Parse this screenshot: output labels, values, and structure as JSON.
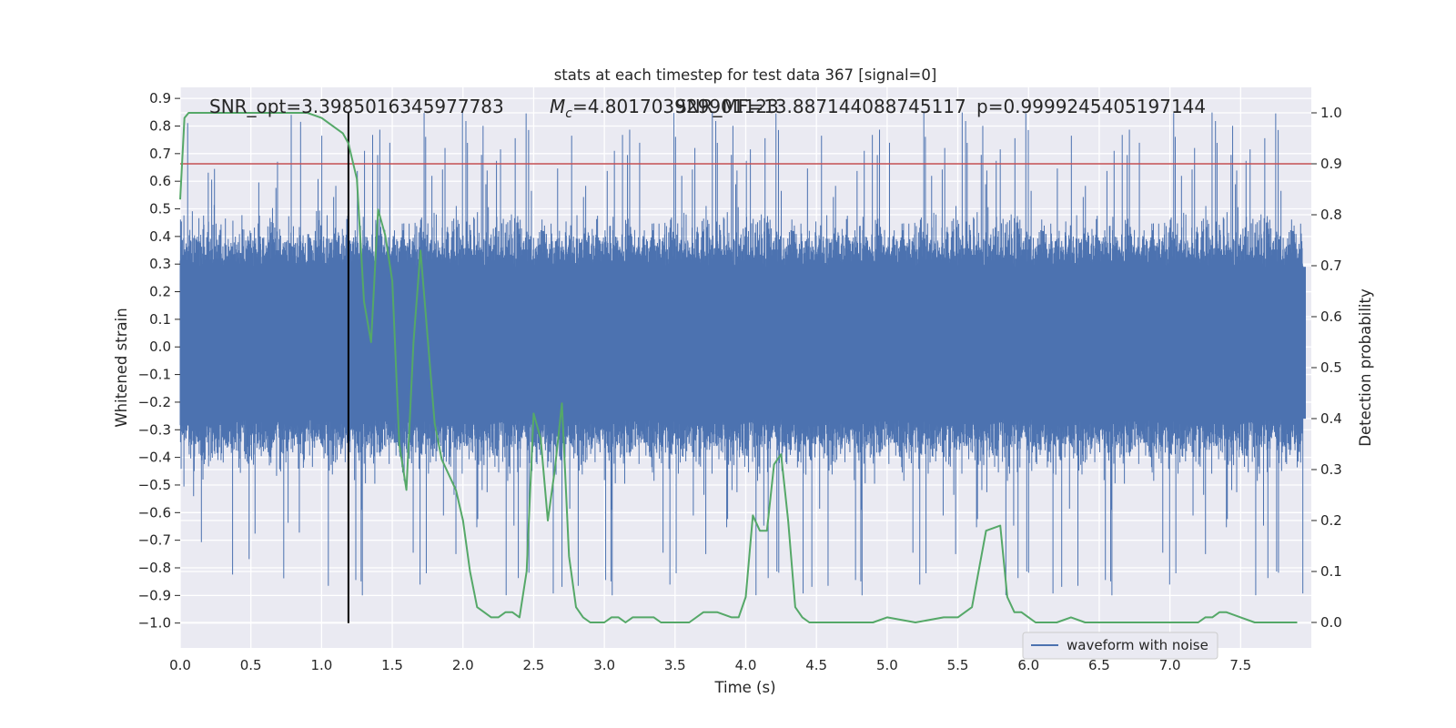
{
  "chart_data": {
    "type": "line",
    "title": "stats at each timestep for test data 367 [signal=0]",
    "xlabel": "Time (s)",
    "ylabel": "Whitened strain",
    "y2label": "Detection probability",
    "xlim": [
      0.0,
      8.0
    ],
    "ylim": [
      -1.09,
      0.94
    ],
    "y2lim": [
      -0.05,
      1.05
    ],
    "xticks": [
      "0.0",
      "0.5",
      "1.0",
      "1.5",
      "2.0",
      "2.5",
      "3.0",
      "3.5",
      "4.0",
      "4.5",
      "5.0",
      "5.5",
      "6.0",
      "6.5",
      "7.0",
      "7.5"
    ],
    "yticks": [
      "0.9",
      "0.8",
      "0.7",
      "0.6",
      "0.5",
      "0.4",
      "0.3",
      "0.2",
      "0.1",
      "0.0",
      "−0.1",
      "−0.2",
      "−0.3",
      "−0.4",
      "−0.5",
      "−0.6",
      "−0.7",
      "−0.8",
      "−0.9",
      "−1.0"
    ],
    "y2ticks": [
      "1.0",
      "0.9",
      "0.8",
      "0.7",
      "0.6",
      "0.5",
      "0.4",
      "0.3",
      "0.2",
      "0.1",
      "0.0"
    ],
    "grid": true,
    "legend_position": "lower-right",
    "colors": {
      "background": "#eaeaf2",
      "waveform": "#4c72b0",
      "probability": "#55a868",
      "threshold": "#c44e52",
      "marker": "#000000",
      "grid": "#ffffff"
    },
    "annotations": {
      "snr_opt": "SNR_opt=3.3985016345977783",
      "mc_prefix": "M",
      "mc_sub": "c",
      "mc_value": "=4.801703929901123",
      "snr_mf": "SNR_MF=13.887144088745117",
      "p_value": "p=0.9999245405197144"
    },
    "threshold_line": {
      "probability": 0.9
    },
    "marker_line": {
      "time": 1.19,
      "y_from": -1.0
    },
    "series": [
      {
        "name": "waveform with noise",
        "description": "dense noisy whitened strain",
        "envelope_core": [
          -0.26,
          0.29
        ],
        "typical_peak": 0.55
      },
      {
        "name": "",
        "axis": "right",
        "x": [
          0.0,
          0.03,
          0.06,
          0.1,
          0.2,
          0.4,
          0.6,
          0.8,
          0.9,
          1.0,
          1.1,
          1.15,
          1.19,
          1.25,
          1.3,
          1.35,
          1.4,
          1.45,
          1.5,
          1.55,
          1.6,
          1.65,
          1.7,
          1.75,
          1.8,
          1.85,
          1.9,
          1.95,
          2.0,
          2.05,
          2.1,
          2.15,
          2.2,
          2.25,
          2.3,
          2.35,
          2.4,
          2.45,
          2.5,
          2.55,
          2.6,
          2.65,
          2.7,
          2.75,
          2.8,
          2.85,
          2.9,
          2.95,
          3.0,
          3.05,
          3.1,
          3.15,
          3.2,
          3.25,
          3.3,
          3.35,
          3.4,
          3.5,
          3.6,
          3.7,
          3.8,
          3.9,
          3.95,
          4.0,
          4.05,
          4.1,
          4.15,
          4.2,
          4.25,
          4.3,
          4.35,
          4.4,
          4.45,
          4.5,
          4.55,
          4.6,
          4.65,
          4.7,
          4.75,
          4.8,
          4.9,
          5.0,
          5.2,
          5.4,
          5.5,
          5.6,
          5.7,
          5.8,
          5.85,
          5.9,
          5.95,
          6.0,
          6.05,
          6.1,
          6.2,
          6.3,
          6.4,
          6.5,
          6.6,
          6.7,
          6.8,
          6.9,
          7.0,
          7.1,
          7.2,
          7.25,
          7.3,
          7.35,
          7.4,
          7.5,
          7.6,
          7.7,
          7.8,
          7.9
        ],
        "values": [
          0.83,
          0.99,
          1.0,
          1.0,
          1.0,
          1.0,
          1.0,
          1.0,
          1.0,
          0.99,
          0.97,
          0.96,
          0.94,
          0.87,
          0.63,
          0.55,
          0.81,
          0.76,
          0.67,
          0.35,
          0.26,
          0.55,
          0.73,
          0.56,
          0.39,
          0.32,
          0.29,
          0.26,
          0.2,
          0.1,
          0.03,
          0.02,
          0.01,
          0.01,
          0.02,
          0.02,
          0.01,
          0.1,
          0.41,
          0.36,
          0.2,
          0.3,
          0.43,
          0.13,
          0.03,
          0.01,
          0.0,
          0.0,
          0.0,
          0.01,
          0.01,
          0.0,
          0.01,
          0.01,
          0.01,
          0.01,
          0.0,
          0.0,
          0.0,
          0.02,
          0.02,
          0.01,
          0.01,
          0.05,
          0.21,
          0.18,
          0.18,
          0.31,
          0.33,
          0.2,
          0.03,
          0.01,
          0.0,
          0.0,
          0.0,
          0.0,
          0.0,
          0.0,
          0.0,
          0.0,
          0.0,
          0.01,
          0.0,
          0.01,
          0.01,
          0.03,
          0.18,
          0.19,
          0.05,
          0.02,
          0.02,
          0.01,
          0.0,
          0.0,
          0.0,
          0.01,
          0.0,
          0.0,
          0.0,
          0.0,
          0.0,
          0.0,
          0.0,
          0.0,
          0.0,
          0.01,
          0.01,
          0.02,
          0.02,
          0.01,
          0.0,
          0.0,
          0.0,
          0.0
        ]
      }
    ]
  }
}
